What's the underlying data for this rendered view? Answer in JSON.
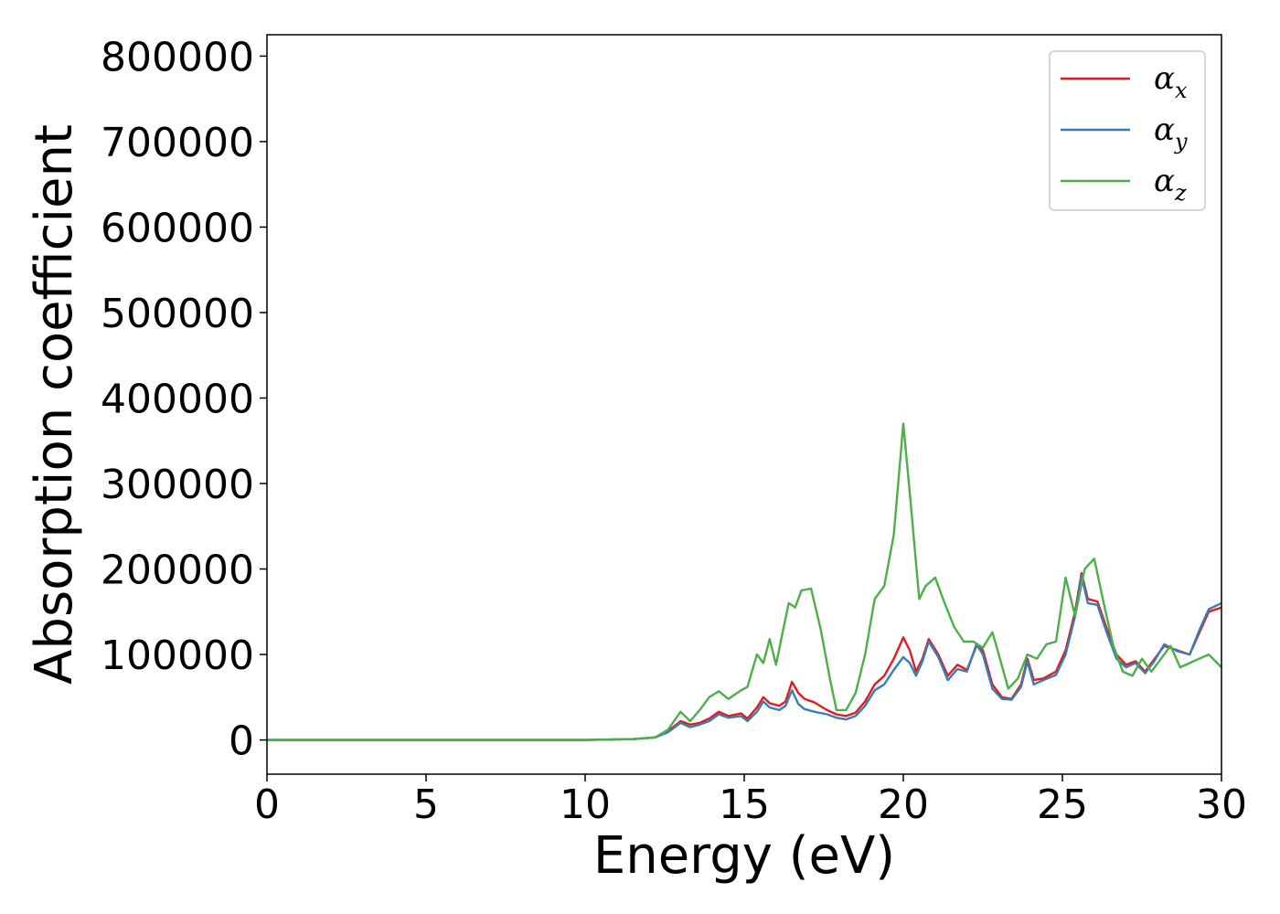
{
  "chart_data": {
    "type": "line",
    "title": "",
    "xlabel": "Energy (eV)",
    "ylabel": "Absorption coefficient",
    "xlim": [
      0,
      30
    ],
    "ylim": [
      -40000,
      825000
    ],
    "xticks": [
      0,
      5,
      10,
      15,
      20,
      25,
      30
    ],
    "yticks": [
      0,
      100000,
      200000,
      300000,
      400000,
      500000,
      600000,
      700000,
      800000
    ],
    "grid": false,
    "legend_position": "top-right",
    "series": [
      {
        "name": "αx",
        "symbol": "α",
        "subscript": "x",
        "color": "#e41a1c",
        "points": [
          [
            0,
            0
          ],
          [
            10,
            0
          ],
          [
            11.5,
            1000
          ],
          [
            12.2,
            3000
          ],
          [
            12.6,
            10000
          ],
          [
            13.0,
            22000
          ],
          [
            13.3,
            18000
          ],
          [
            13.6,
            20000
          ],
          [
            13.9,
            25000
          ],
          [
            14.2,
            33000
          ],
          [
            14.5,
            28000
          ],
          [
            14.9,
            31000
          ],
          [
            15.1,
            25000
          ],
          [
            15.4,
            38000
          ],
          [
            15.6,
            50000
          ],
          [
            15.8,
            43000
          ],
          [
            16.1,
            40000
          ],
          [
            16.3,
            45000
          ],
          [
            16.5,
            68000
          ],
          [
            16.7,
            55000
          ],
          [
            16.9,
            48000
          ],
          [
            17.2,
            44000
          ],
          [
            17.6,
            35000
          ],
          [
            17.9,
            30000
          ],
          [
            18.2,
            28000
          ],
          [
            18.5,
            32000
          ],
          [
            18.8,
            45000
          ],
          [
            19.1,
            65000
          ],
          [
            19.4,
            75000
          ],
          [
            19.7,
            95000
          ],
          [
            20.0,
            120000
          ],
          [
            20.2,
            105000
          ],
          [
            20.4,
            80000
          ],
          [
            20.6,
            95000
          ],
          [
            20.8,
            118000
          ],
          [
            21.1,
            100000
          ],
          [
            21.4,
            75000
          ],
          [
            21.7,
            88000
          ],
          [
            22.0,
            82000
          ],
          [
            22.3,
            110000
          ],
          [
            22.5,
            105000
          ],
          [
            22.8,
            65000
          ],
          [
            23.1,
            50000
          ],
          [
            23.4,
            48000
          ],
          [
            23.7,
            65000
          ],
          [
            23.9,
            95000
          ],
          [
            24.1,
            70000
          ],
          [
            24.4,
            72000
          ],
          [
            24.8,
            80000
          ],
          [
            25.1,
            105000
          ],
          [
            25.4,
            150000
          ],
          [
            25.6,
            195000
          ],
          [
            25.8,
            165000
          ],
          [
            26.1,
            162000
          ],
          [
            26.4,
            130000
          ],
          [
            26.7,
            100000
          ],
          [
            27.0,
            88000
          ],
          [
            27.3,
            92000
          ],
          [
            27.6,
            80000
          ],
          [
            27.9,
            95000
          ],
          [
            28.2,
            110000
          ],
          [
            28.6,
            105000
          ],
          [
            29.0,
            100000
          ],
          [
            29.3,
            125000
          ],
          [
            29.6,
            150000
          ],
          [
            30,
            155000
          ]
        ]
      },
      {
        "name": "αy",
        "symbol": "α",
        "subscript": "y",
        "color": "#377eb8",
        "points": [
          [
            0,
            0
          ],
          [
            10,
            0
          ],
          [
            11.5,
            1000
          ],
          [
            12.2,
            3000
          ],
          [
            12.6,
            9000
          ],
          [
            13.0,
            20000
          ],
          [
            13.3,
            15000
          ],
          [
            13.6,
            18000
          ],
          [
            13.9,
            22000
          ],
          [
            14.2,
            30000
          ],
          [
            14.5,
            26000
          ],
          [
            14.9,
            28000
          ],
          [
            15.1,
            22000
          ],
          [
            15.4,
            33000
          ],
          [
            15.6,
            45000
          ],
          [
            15.8,
            38000
          ],
          [
            16.1,
            35000
          ],
          [
            16.3,
            40000
          ],
          [
            16.5,
            58000
          ],
          [
            16.7,
            42000
          ],
          [
            16.9,
            36000
          ],
          [
            17.2,
            33000
          ],
          [
            17.6,
            30000
          ],
          [
            17.9,
            26000
          ],
          [
            18.2,
            24000
          ],
          [
            18.5,
            28000
          ],
          [
            18.8,
            40000
          ],
          [
            19.1,
            58000
          ],
          [
            19.4,
            65000
          ],
          [
            19.7,
            82000
          ],
          [
            20.0,
            97000
          ],
          [
            20.2,
            90000
          ],
          [
            20.4,
            75000
          ],
          [
            20.6,
            92000
          ],
          [
            20.8,
            115000
          ],
          [
            21.1,
            97000
          ],
          [
            21.4,
            70000
          ],
          [
            21.7,
            83000
          ],
          [
            22.0,
            80000
          ],
          [
            22.3,
            112000
          ],
          [
            22.5,
            100000
          ],
          [
            22.8,
            60000
          ],
          [
            23.1,
            48000
          ],
          [
            23.4,
            47000
          ],
          [
            23.7,
            62000
          ],
          [
            23.9,
            92000
          ],
          [
            24.1,
            65000
          ],
          [
            24.4,
            70000
          ],
          [
            24.8,
            76000
          ],
          [
            25.1,
            100000
          ],
          [
            25.4,
            145000
          ],
          [
            25.6,
            192000
          ],
          [
            25.8,
            160000
          ],
          [
            26.1,
            158000
          ],
          [
            26.4,
            125000
          ],
          [
            26.7,
            95000
          ],
          [
            27.0,
            85000
          ],
          [
            27.3,
            90000
          ],
          [
            27.6,
            78000
          ],
          [
            27.9,
            93000
          ],
          [
            28.2,
            112000
          ],
          [
            28.6,
            104000
          ],
          [
            29.0,
            100000
          ],
          [
            29.3,
            128000
          ],
          [
            29.6,
            153000
          ],
          [
            30,
            160000
          ]
        ]
      },
      {
        "name": "αz",
        "symbol": "α",
        "subscript": "z",
        "color": "#4daf4a",
        "points": [
          [
            0,
            0
          ],
          [
            10,
            0
          ],
          [
            11.5,
            1000
          ],
          [
            12.2,
            3000
          ],
          [
            12.6,
            12000
          ],
          [
            13.0,
            33000
          ],
          [
            13.3,
            22000
          ],
          [
            13.6,
            35000
          ],
          [
            13.9,
            50000
          ],
          [
            14.2,
            57000
          ],
          [
            14.5,
            48000
          ],
          [
            14.9,
            58000
          ],
          [
            15.1,
            62000
          ],
          [
            15.4,
            100000
          ],
          [
            15.6,
            90000
          ],
          [
            15.8,
            118000
          ],
          [
            16.0,
            88000
          ],
          [
            16.2,
            125000
          ],
          [
            16.4,
            160000
          ],
          [
            16.6,
            155000
          ],
          [
            16.8,
            175000
          ],
          [
            17.1,
            177000
          ],
          [
            17.4,
            130000
          ],
          [
            17.7,
            70000
          ],
          [
            17.9,
            35000
          ],
          [
            18.2,
            35000
          ],
          [
            18.5,
            55000
          ],
          [
            18.8,
            100000
          ],
          [
            19.1,
            165000
          ],
          [
            19.4,
            180000
          ],
          [
            19.7,
            240000
          ],
          [
            20.0,
            370000
          ],
          [
            20.2,
            290000
          ],
          [
            20.5,
            165000
          ],
          [
            20.7,
            180000
          ],
          [
            21.0,
            190000
          ],
          [
            21.3,
            160000
          ],
          [
            21.6,
            132000
          ],
          [
            21.9,
            115000
          ],
          [
            22.2,
            115000
          ],
          [
            22.5,
            108000
          ],
          [
            22.8,
            126000
          ],
          [
            23.0,
            100000
          ],
          [
            23.3,
            60000
          ],
          [
            23.6,
            72000
          ],
          [
            23.9,
            100000
          ],
          [
            24.2,
            95000
          ],
          [
            24.5,
            112000
          ],
          [
            24.8,
            115000
          ],
          [
            25.1,
            190000
          ],
          [
            25.4,
            145000
          ],
          [
            25.7,
            200000
          ],
          [
            26.0,
            212000
          ],
          [
            26.3,
            160000
          ],
          [
            26.6,
            110000
          ],
          [
            26.9,
            80000
          ],
          [
            27.2,
            75000
          ],
          [
            27.5,
            95000
          ],
          [
            27.8,
            80000
          ],
          [
            28.1,
            95000
          ],
          [
            28.4,
            110000
          ],
          [
            28.7,
            85000
          ],
          [
            29.0,
            90000
          ],
          [
            29.3,
            95000
          ],
          [
            29.6,
            100000
          ],
          [
            30,
            85000
          ]
        ]
      }
    ]
  }
}
